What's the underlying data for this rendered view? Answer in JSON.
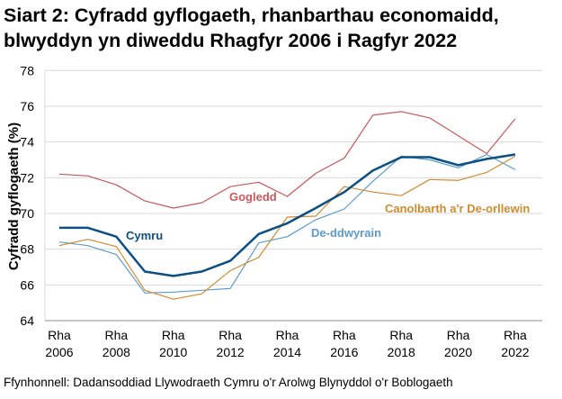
{
  "title": "Siart 2: Cyfradd gyflogaeth, rhanbarthau economaidd, blwyddyn yn diweddu Rhagfyr 2006 i Ragfyr 2022",
  "footer": "Ffynhonnell: Dadansoddiad Llywodraeth Cymru o'r Arolwg Blynyddol o'r Boblogaeth",
  "chart_data": {
    "type": "line",
    "title": "Siart 2: Cyfradd gyflogaeth, rhanbarthau economaidd, blwyddyn yn diweddu Rhagfyr 2006 i Ragfyr 2022",
    "xlabel": "",
    "ylabel": "Cyfradd gyflogaeth (%)",
    "ylim": [
      64,
      78
    ],
    "yticks": [
      64,
      66,
      68,
      70,
      72,
      74,
      76,
      78
    ],
    "grid": true,
    "legend": "inline labels",
    "x": [
      2006,
      2007,
      2008,
      2009,
      2010,
      2011,
      2012,
      2013,
      2014,
      2015,
      2016,
      2017,
      2018,
      2019,
      2020,
      2021,
      2022
    ],
    "xticks": [
      {
        "line1": "Rha",
        "line2": "2006",
        "year": 2006
      },
      {
        "line1": "Rha",
        "line2": "2008",
        "year": 2008
      },
      {
        "line1": "Rha",
        "line2": "2010",
        "year": 2010
      },
      {
        "line1": "Rha",
        "line2": "2012",
        "year": 2012
      },
      {
        "line1": "Rha",
        "line2": "2014",
        "year": 2014
      },
      {
        "line1": "Rha",
        "line2": "2016",
        "year": 2016
      },
      {
        "line1": "Rha",
        "line2": "2018",
        "year": 2018
      },
      {
        "line1": "Rha",
        "line2": "2020",
        "year": 2020
      },
      {
        "line1": "Rha",
        "line2": "2022",
        "year": 2022
      }
    ],
    "series": [
      {
        "name": "Gogledd",
        "color": "#c8585b",
        "width": 1.2,
        "values": [
          72.2,
          72.1,
          71.6,
          70.7,
          70.3,
          70.6,
          71.5,
          71.75,
          70.95,
          72.25,
          73.1,
          75.5,
          75.7,
          75.35,
          74.35,
          73.35,
          75.3
        ]
      },
      {
        "name": "De-ddwyrain",
        "color": "#5d9bce",
        "width": 1.2,
        "values": [
          68.4,
          68.2,
          67.7,
          65.55,
          65.6,
          65.7,
          65.8,
          68.35,
          68.7,
          69.65,
          70.25,
          71.8,
          73.2,
          73.0,
          72.55,
          73.3,
          72.45
        ]
      },
      {
        "name": "Canolbarth a'r De-orllewin",
        "color": "#d08c2e",
        "width": 1.2,
        "values": [
          68.2,
          68.55,
          68.15,
          65.7,
          65.2,
          65.5,
          66.8,
          67.55,
          69.8,
          69.85,
          71.5,
          71.2,
          71.0,
          71.9,
          71.85,
          72.3,
          73.2
        ]
      },
      {
        "name": "Cymru",
        "color": "#0b4f84",
        "width": 2.5,
        "values": [
          69.2,
          69.2,
          68.7,
          66.75,
          66.5,
          66.75,
          67.35,
          68.85,
          69.45,
          70.3,
          71.2,
          72.4,
          73.15,
          73.15,
          72.7,
          73.05,
          73.3
        ]
      }
    ]
  }
}
